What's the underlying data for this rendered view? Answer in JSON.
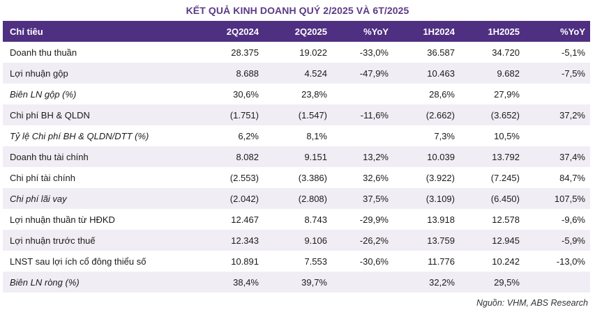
{
  "title": "KẾT QUẢ KINH DOANH QUÝ 2/2025 VÀ 6T/2025",
  "table": {
    "headers": [
      "Chỉ tiêu",
      "2Q2024",
      "2Q2025",
      "%YoY",
      "1H2024",
      "1H2025",
      "%YoY"
    ],
    "rows": [
      {
        "label": "Doanh thu thuần",
        "italic": false,
        "cells": [
          "28.375",
          "19.022",
          "-33,0%",
          "36.587",
          "34.720",
          "-5,1%"
        ]
      },
      {
        "label": "Lợi nhuận gộp",
        "italic": false,
        "cells": [
          "8.688",
          "4.524",
          "-47,9%",
          "10.463",
          "9.682",
          "-7,5%"
        ]
      },
      {
        "label": "Biên LN gộp (%)",
        "italic": true,
        "cells": [
          "30,6%",
          "23,8%",
          "",
          "28,6%",
          "27,9%",
          ""
        ]
      },
      {
        "label": "Chi phí BH & QLDN",
        "italic": false,
        "cells": [
          "(1.751)",
          "(1.547)",
          "-11,6%",
          "(2.662)",
          "(3.652)",
          "37,2%"
        ]
      },
      {
        "label": "Tỷ lệ Chi phí BH & QLDN/DTT (%)",
        "italic": true,
        "cells": [
          "6,2%",
          "8,1%",
          "",
          "7,3%",
          "10,5%",
          ""
        ]
      },
      {
        "label": "Doanh thu tài chính",
        "italic": false,
        "cells": [
          "8.082",
          "9.151",
          "13,2%",
          "10.039",
          "13.792",
          "37,4%"
        ]
      },
      {
        "label": "Chi phí tài chính",
        "italic": false,
        "cells": [
          "(2.553)",
          "(3.386)",
          "32,6%",
          "(3.922)",
          "(7.245)",
          "84,7%"
        ]
      },
      {
        "label": "Chi phí lãi vay",
        "italic": true,
        "cells": [
          "(2.042)",
          "(2.808)",
          "37,5%",
          "(3.109)",
          "(6.450)",
          "107,5%"
        ]
      },
      {
        "label": "Lợi nhuận thuần từ HĐKD",
        "italic": false,
        "cells": [
          "12.467",
          "8.743",
          "-29,9%",
          "13.918",
          "12.578",
          "-9,6%"
        ]
      },
      {
        "label": "Lợi nhuận trước thuế",
        "italic": false,
        "cells": [
          "12.343",
          "9.106",
          "-26,2%",
          "13.759",
          "12.945",
          "-5,9%"
        ]
      },
      {
        "label": "LNST sau lợi ích cổ đông thiểu số",
        "italic": false,
        "cells": [
          "10.891",
          "7.553",
          "-30,6%",
          "11.776",
          "10.242",
          "-13,0%"
        ]
      },
      {
        "label": "Biên LN ròng (%)",
        "italic": true,
        "cells": [
          "38,4%",
          "39,7%",
          "",
          "32,2%",
          "29,5%",
          ""
        ]
      }
    ]
  },
  "source": "Nguồn: VHM, ABS Research",
  "colors": {
    "header_bg": "#4f2f81",
    "title": "#5b3a86",
    "stripe": "#f1edf5"
  }
}
